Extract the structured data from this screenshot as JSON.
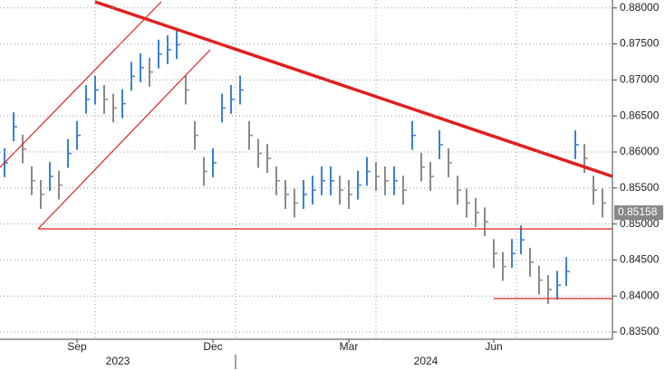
{
  "chart_data": {
    "type": "ohlc",
    "categories": [
      null,
      null,
      null,
      null,
      null,
      null,
      null,
      null,
      "Sep",
      null,
      null,
      null,
      null,
      null,
      null,
      null,
      null,
      null,
      null,
      null,
      null,
      null,
      null,
      "Dec",
      null,
      null,
      null,
      null,
      null,
      null,
      null,
      null,
      null,
      null,
      null,
      null,
      null,
      null,
      "Mar",
      null,
      null,
      null,
      null,
      null,
      null,
      null,
      null,
      null,
      null,
      null,
      null,
      null,
      null,
      null,
      "Jun",
      null,
      null,
      null,
      null,
      null,
      null,
      null,
      null,
      null,
      null,
      null,
      null
    ],
    "year_labels": [
      "2023",
      "2024"
    ],
    "high": [
      0.8605,
      0.8655,
      0.8624,
      0.858,
      0.8561,
      0.8586,
      0.8574,
      0.8618,
      0.8643,
      0.8693,
      0.8706,
      0.8693,
      0.8681,
      0.8687,
      0.8725,
      0.8737,
      0.8731,
      0.8756,
      0.8762,
      0.8769,
      0.8706,
      0.8643,
      0.8593,
      0.8605,
      0.8681,
      0.8693,
      0.8706,
      0.8643,
      0.8618,
      0.8611,
      0.858,
      0.8561,
      0.8549,
      0.8561,
      0.8567,
      0.858,
      0.858,
      0.8567,
      0.8561,
      0.8574,
      0.8593,
      0.8586,
      0.858,
      0.858,
      0.8567,
      0.8643,
      0.8599,
      0.8586,
      0.863,
      0.8605,
      0.8567,
      0.8549,
      0.8536,
      0.8523,
      0.8479,
      0.8461,
      0.8479,
      0.8498,
      0.8467,
      0.8442,
      0.8429,
      0.8435,
      0.8454,
      0.863,
      0.8611,
      0.8567,
      0.8549
    ],
    "low": [
      0.8565,
      0.8615,
      0.8584,
      0.854,
      0.8521,
      0.8546,
      0.8534,
      0.8578,
      0.8603,
      0.8653,
      0.8666,
      0.8653,
      0.8641,
      0.8647,
      0.8685,
      0.8697,
      0.8691,
      0.8716,
      0.8722,
      0.8729,
      0.8666,
      0.8603,
      0.8553,
      0.8565,
      0.8641,
      0.8653,
      0.8666,
      0.8603,
      0.8578,
      0.8571,
      0.854,
      0.8521,
      0.8509,
      0.8521,
      0.8527,
      0.854,
      0.854,
      0.8527,
      0.8521,
      0.8534,
      0.8553,
      0.8546,
      0.854,
      0.854,
      0.8527,
      0.8603,
      0.8559,
      0.8546,
      0.859,
      0.8565,
      0.8527,
      0.8509,
      0.8496,
      0.8483,
      0.8439,
      0.8421,
      0.8439,
      0.8458,
      0.8427,
      0.8402,
      0.8389,
      0.8395,
      0.8414,
      0.859,
      0.8571,
      0.8527,
      0.8509
    ],
    "close": [
      0.8585,
      0.8635,
      0.8604,
      0.856,
      0.8541,
      0.8566,
      0.8554,
      0.8598,
      0.8623,
      0.8673,
      0.8686,
      0.8673,
      0.8661,
      0.8667,
      0.8705,
      0.8717,
      0.8711,
      0.8736,
      0.8742,
      0.8749,
      0.8686,
      0.8623,
      0.8573,
      0.8585,
      0.8661,
      0.8673,
      0.8686,
      0.8623,
      0.8598,
      0.8591,
      0.856,
      0.8541,
      0.8529,
      0.8541,
      0.8547,
      0.856,
      0.856,
      0.8547,
      0.8541,
      0.8554,
      0.8573,
      0.8566,
      0.856,
      0.856,
      0.8547,
      0.8623,
      0.8579,
      0.8566,
      0.861,
      0.8585,
      0.8547,
      0.8529,
      0.8516,
      0.8503,
      0.8459,
      0.8441,
      0.8459,
      0.8478,
      0.8447,
      0.8422,
      0.8409,
      0.8415,
      0.8434,
      0.861,
      0.8591,
      0.8547,
      0.8529
    ],
    "up_color": "#3a80d8",
    "down_color": "#8a8a8a",
    "last_price": 0.85158,
    "ylim": [
      0.834,
      0.8811
    ],
    "yticks": [
      {
        "value": 0.835,
        "label": "0.83500"
      },
      {
        "value": 0.84,
        "label": "0.84000"
      },
      {
        "value": 0.845,
        "label": "0.84500"
      },
      {
        "value": 0.85,
        "label": "0.85000"
      },
      {
        "value": 0.855,
        "label": "0.85500"
      },
      {
        "value": 0.86,
        "label": "0.86000"
      },
      {
        "value": 0.865,
        "label": "0.86500"
      },
      {
        "value": 0.87,
        "label": "0.87000"
      },
      {
        "value": 0.875,
        "label": "0.87500"
      },
      {
        "value": 0.88,
        "label": "0.88000"
      }
    ],
    "grid": true
  }
}
